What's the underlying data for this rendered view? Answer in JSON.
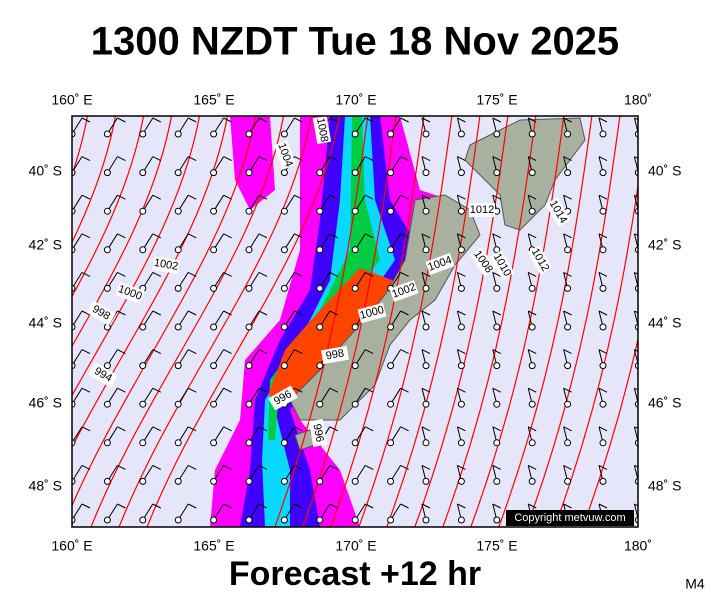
{
  "title": "1300 NZDT Tue 18 Nov 2025",
  "footer": "Forecast +12 hr",
  "model": "M4",
  "copyright": "Copyright metvuw.com",
  "lon_labels": [
    "160˚ E",
    "165˚ E",
    "170˚ E",
    "175˚ E",
    "180˚"
  ],
  "lat_labels": [
    "40˚ S",
    "42˚ S",
    "44˚ S",
    "46˚ S",
    "48˚ S"
  ],
  "isobar_labels": [
    "1004",
    "1008",
    "1002",
    "1000",
    "998",
    "994",
    "1002",
    "1000",
    "998",
    "996",
    "996",
    "1004",
    "1008",
    "1010",
    "1012",
    "1014",
    "1012"
  ]
}
